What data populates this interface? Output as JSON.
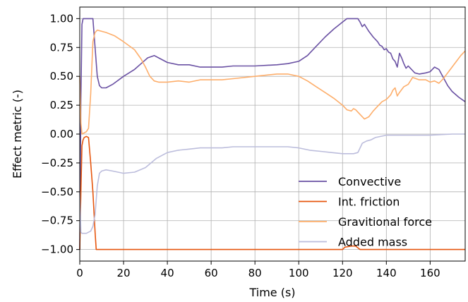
{
  "chart_data": {
    "type": "line",
    "xlabel": "Time (s)",
    "ylabel": "Effect metric (-)",
    "xlim": [
      0,
      176
    ],
    "ylim": [
      -1.1,
      1.1
    ],
    "xticks": [
      0,
      20,
      40,
      60,
      80,
      100,
      120,
      140,
      160
    ],
    "xtick_labels": [
      "0",
      "20",
      "40",
      "60",
      "80",
      "100",
      "120",
      "140",
      "160"
    ],
    "yticks": [
      -1.0,
      -0.75,
      -0.5,
      -0.25,
      0.0,
      0.25,
      0.5,
      0.75,
      1.0
    ],
    "ytick_labels": [
      "−1.00",
      "−0.75",
      "−0.50",
      "−0.25",
      "0.00",
      "0.25",
      "0.50",
      "0.75",
      "1.00"
    ],
    "grid": true,
    "legend_position": "lower-right",
    "series": [
      {
        "name": "Convective",
        "color": "#6a51a3",
        "points": [
          [
            0,
            -1.0
          ],
          [
            0.5,
            0.3
          ],
          [
            1,
            0.95
          ],
          [
            1.5,
            1.0
          ],
          [
            6,
            1.0
          ],
          [
            7,
            0.75
          ],
          [
            8,
            0.5
          ],
          [
            9,
            0.42
          ],
          [
            10,
            0.4
          ],
          [
            12,
            0.4
          ],
          [
            15,
            0.43
          ],
          [
            20,
            0.5
          ],
          [
            25,
            0.56
          ],
          [
            28,
            0.61
          ],
          [
            31,
            0.66
          ],
          [
            34,
            0.68
          ],
          [
            36,
            0.66
          ],
          [
            40,
            0.62
          ],
          [
            45,
            0.6
          ],
          [
            50,
            0.6
          ],
          [
            55,
            0.58
          ],
          [
            60,
            0.58
          ],
          [
            65,
            0.58
          ],
          [
            70,
            0.59
          ],
          [
            80,
            0.59
          ],
          [
            90,
            0.6
          ],
          [
            95,
            0.61
          ],
          [
            100,
            0.63
          ],
          [
            104,
            0.68
          ],
          [
            108,
            0.76
          ],
          [
            112,
            0.84
          ],
          [
            116,
            0.91
          ],
          [
            120,
            0.97
          ],
          [
            122,
            1.0
          ],
          [
            127,
            1.0
          ],
          [
            128,
            0.97
          ],
          [
            129,
            0.93
          ],
          [
            130,
            0.95
          ],
          [
            131,
            0.92
          ],
          [
            132,
            0.89
          ],
          [
            134,
            0.84
          ],
          [
            136,
            0.8
          ],
          [
            137,
            0.77
          ],
          [
            138,
            0.76
          ],
          [
            139,
            0.73
          ],
          [
            140,
            0.74
          ],
          [
            141,
            0.71
          ],
          [
            142,
            0.7
          ],
          [
            143,
            0.65
          ],
          [
            144,
            0.63
          ],
          [
            145,
            0.58
          ],
          [
            146,
            0.7
          ],
          [
            147,
            0.66
          ],
          [
            148,
            0.61
          ],
          [
            149,
            0.57
          ],
          [
            150,
            0.59
          ],
          [
            151,
            0.57
          ],
          [
            152,
            0.55
          ],
          [
            153,
            0.53
          ],
          [
            155,
            0.52
          ],
          [
            158,
            0.53
          ],
          [
            160,
            0.54
          ],
          [
            162,
            0.58
          ],
          [
            164,
            0.56
          ],
          [
            166,
            0.49
          ],
          [
            168,
            0.42
          ],
          [
            170,
            0.37
          ],
          [
            173,
            0.32
          ],
          [
            176,
            0.28
          ]
        ]
      },
      {
        "name": "Int. friction",
        "color": "#e6550d",
        "points": [
          [
            0,
            -1.0
          ],
          [
            0.5,
            -0.5
          ],
          [
            1,
            -0.1
          ],
          [
            1.5,
            -0.05
          ],
          [
            2,
            -0.03
          ],
          [
            3,
            -0.02
          ],
          [
            4,
            -0.03
          ],
          [
            5,
            -0.25
          ],
          [
            6,
            -0.5
          ],
          [
            7,
            -0.85
          ],
          [
            7.5,
            -1.0
          ],
          [
            120,
            -1.0
          ],
          [
            121,
            -0.98
          ],
          [
            124,
            -0.97
          ],
          [
            126,
            -0.97
          ],
          [
            128,
            -1.0
          ],
          [
            176,
            -1.0
          ]
        ]
      },
      {
        "name": "Gravitional force",
        "color": "#fdae6b",
        "points": [
          [
            0,
            0.5
          ],
          [
            0.5,
            0.1
          ],
          [
            1,
            0.0
          ],
          [
            3,
            0.02
          ],
          [
            4,
            0.05
          ],
          [
            5,
            0.35
          ],
          [
            6,
            0.8
          ],
          [
            7,
            0.88
          ],
          [
            8,
            0.9
          ],
          [
            12,
            0.88
          ],
          [
            16,
            0.85
          ],
          [
            20,
            0.8
          ],
          [
            25,
            0.73
          ],
          [
            28,
            0.65
          ],
          [
            30,
            0.58
          ],
          [
            32,
            0.5
          ],
          [
            34,
            0.46
          ],
          [
            36,
            0.45
          ],
          [
            40,
            0.45
          ],
          [
            45,
            0.46
          ],
          [
            50,
            0.45
          ],
          [
            55,
            0.47
          ],
          [
            65,
            0.47
          ],
          [
            70,
            0.48
          ],
          [
            80,
            0.5
          ],
          [
            90,
            0.52
          ],
          [
            95,
            0.52
          ],
          [
            100,
            0.5
          ],
          [
            104,
            0.46
          ],
          [
            108,
            0.41
          ],
          [
            112,
            0.36
          ],
          [
            116,
            0.31
          ],
          [
            120,
            0.25
          ],
          [
            122,
            0.21
          ],
          [
            124,
            0.2
          ],
          [
            125,
            0.22
          ],
          [
            126,
            0.21
          ],
          [
            128,
            0.17
          ],
          [
            130,
            0.13
          ],
          [
            132,
            0.15
          ],
          [
            134,
            0.2
          ],
          [
            136,
            0.24
          ],
          [
            138,
            0.28
          ],
          [
            140,
            0.3
          ],
          [
            142,
            0.34
          ],
          [
            143,
            0.38
          ],
          [
            144,
            0.4
          ],
          [
            145,
            0.33
          ],
          [
            146,
            0.36
          ],
          [
            148,
            0.41
          ],
          [
            150,
            0.43
          ],
          [
            152,
            0.49
          ],
          [
            155,
            0.47
          ],
          [
            158,
            0.47
          ],
          [
            160,
            0.45
          ],
          [
            162,
            0.46
          ],
          [
            164,
            0.44
          ],
          [
            166,
            0.48
          ],
          [
            168,
            0.53
          ],
          [
            170,
            0.58
          ],
          [
            172,
            0.63
          ],
          [
            174,
            0.68
          ],
          [
            176,
            0.72
          ]
        ]
      },
      {
        "name": "Added mass",
        "color": "#bcbddc",
        "points": [
          [
            0,
            -0.5
          ],
          [
            0.5,
            -0.85
          ],
          [
            1,
            -0.86
          ],
          [
            3,
            -0.86
          ],
          [
            5,
            -0.84
          ],
          [
            6,
            -0.8
          ],
          [
            7,
            -0.7
          ],
          [
            8,
            -0.45
          ],
          [
            9,
            -0.34
          ],
          [
            10,
            -0.32
          ],
          [
            12,
            -0.31
          ],
          [
            15,
            -0.32
          ],
          [
            20,
            -0.34
          ],
          [
            25,
            -0.33
          ],
          [
            30,
            -0.29
          ],
          [
            35,
            -0.21
          ],
          [
            40,
            -0.16
          ],
          [
            45,
            -0.14
          ],
          [
            50,
            -0.13
          ],
          [
            55,
            -0.12
          ],
          [
            65,
            -0.12
          ],
          [
            70,
            -0.11
          ],
          [
            80,
            -0.11
          ],
          [
            90,
            -0.11
          ],
          [
            95,
            -0.11
          ],
          [
            100,
            -0.12
          ],
          [
            105,
            -0.14
          ],
          [
            110,
            -0.15
          ],
          [
            115,
            -0.16
          ],
          [
            120,
            -0.17
          ],
          [
            125,
            -0.17
          ],
          [
            127,
            -0.16
          ],
          [
            129,
            -0.08
          ],
          [
            131,
            -0.06
          ],
          [
            133,
            -0.05
          ],
          [
            134,
            -0.04
          ],
          [
            135,
            -0.03
          ],
          [
            140,
            -0.01
          ],
          [
            145,
            -0.01
          ],
          [
            150,
            -0.01
          ],
          [
            160,
            -0.01
          ],
          [
            170,
            0.0
          ],
          [
            176,
            0.0
          ]
        ]
      }
    ]
  }
}
